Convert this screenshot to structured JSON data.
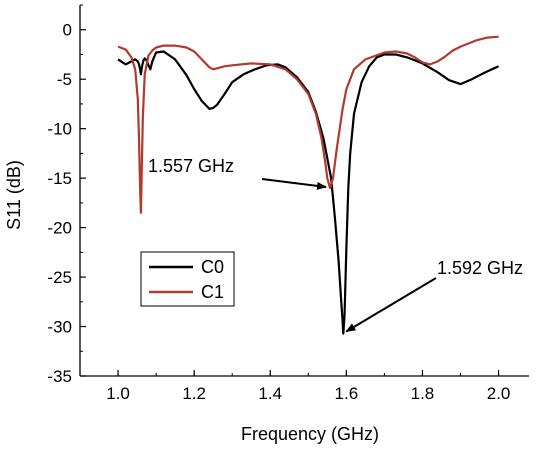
{
  "chart_data": {
    "type": "line",
    "title": "",
    "xlabel": "Frequency (GHz)",
    "ylabel": "S11 (dB)",
    "xlim": [
      0.9,
      2.08
    ],
    "ylim": [
      -35,
      2.5
    ],
    "x_ticks": [
      1.0,
      1.2,
      1.4,
      1.6,
      1.8,
      2.0
    ],
    "x_tick_labels": [
      "1.0",
      "1.2",
      "1.4",
      "1.6",
      "1.8",
      "2.0"
    ],
    "y_ticks": [
      0,
      -5,
      -10,
      -15,
      -20,
      -25,
      -30,
      -35
    ],
    "y_tick_labels": [
      "0",
      "-5",
      "-10",
      "-15",
      "-20",
      "-25",
      "-30",
      "-35"
    ],
    "grid": false,
    "legend": {
      "placement": "center-left",
      "entries": [
        "C0",
        "C1"
      ]
    },
    "series": [
      {
        "name": "C0",
        "color": "#000000",
        "x": [
          1.0,
          1.02,
          1.035,
          1.045,
          1.052,
          1.055,
          1.058,
          1.06,
          1.062,
          1.064,
          1.067,
          1.07,
          1.075,
          1.08,
          1.085,
          1.09,
          1.1,
          1.12,
          1.15,
          1.18,
          1.2,
          1.22,
          1.24,
          1.25,
          1.26,
          1.28,
          1.3,
          1.33,
          1.36,
          1.39,
          1.42,
          1.44,
          1.47,
          1.5,
          1.52,
          1.54,
          1.56,
          1.57,
          1.58,
          1.585,
          1.59,
          1.592,
          1.595,
          1.6,
          1.605,
          1.61,
          1.62,
          1.64,
          1.66,
          1.68,
          1.7,
          1.73,
          1.76,
          1.8,
          1.84,
          1.87,
          1.9,
          1.93,
          1.96,
          2.0
        ],
        "y": [
          -3.0,
          -3.5,
          -3.2,
          -3.0,
          -3.2,
          -3.5,
          -4.0,
          -4.5,
          -4.0,
          -3.5,
          -3.1,
          -2.9,
          -3.1,
          -3.6,
          -4.0,
          -3.2,
          -2.3,
          -2.2,
          -3.0,
          -4.6,
          -6.0,
          -7.2,
          -8.0,
          -7.9,
          -7.6,
          -6.5,
          -5.3,
          -4.5,
          -4.0,
          -3.6,
          -3.5,
          -3.8,
          -4.8,
          -6.3,
          -8.3,
          -11.0,
          -15.0,
          -19.0,
          -23.5,
          -26.5,
          -29.5,
          -30.7,
          -29.0,
          -22.0,
          -16.0,
          -12.5,
          -8.5,
          -5.3,
          -3.7,
          -2.8,
          -2.5,
          -2.5,
          -2.8,
          -3.4,
          -4.3,
          -5.1,
          -5.5,
          -5.0,
          -4.4,
          -3.7
        ]
      },
      {
        "name": "C1",
        "color": "#b03a2e",
        "x": [
          1.0,
          1.02,
          1.035,
          1.045,
          1.052,
          1.055,
          1.058,
          1.06,
          1.062,
          1.065,
          1.07,
          1.08,
          1.09,
          1.1,
          1.12,
          1.15,
          1.18,
          1.2,
          1.22,
          1.24,
          1.25,
          1.28,
          1.3,
          1.35,
          1.4,
          1.44,
          1.47,
          1.5,
          1.52,
          1.535,
          1.545,
          1.55,
          1.557,
          1.565,
          1.575,
          1.59,
          1.6,
          1.62,
          1.65,
          1.7,
          1.73,
          1.76,
          1.78,
          1.8,
          1.82,
          1.84,
          1.86,
          1.88,
          1.9,
          1.94,
          1.97,
          2.0
        ],
        "y": [
          -1.7,
          -2.0,
          -2.8,
          -4.0,
          -7.0,
          -11.0,
          -16.0,
          -18.5,
          -15.0,
          -9.0,
          -4.5,
          -2.6,
          -2.1,
          -1.8,
          -1.6,
          -1.6,
          -1.8,
          -2.2,
          -3.0,
          -3.8,
          -4.0,
          -3.7,
          -3.6,
          -3.4,
          -3.5,
          -4.0,
          -5.0,
          -6.5,
          -8.5,
          -11.0,
          -13.5,
          -15.0,
          -16.0,
          -15.0,
          -12.0,
          -8.0,
          -6.0,
          -4.0,
          -3.0,
          -2.3,
          -2.2,
          -2.4,
          -2.8,
          -3.3,
          -3.5,
          -3.2,
          -2.7,
          -2.1,
          -1.7,
          -1.1,
          -0.8,
          -0.7
        ]
      }
    ],
    "annotations": [
      {
        "text": "1.557 GHz"
      },
      {
        "text": "1.592 GHz"
      }
    ]
  }
}
